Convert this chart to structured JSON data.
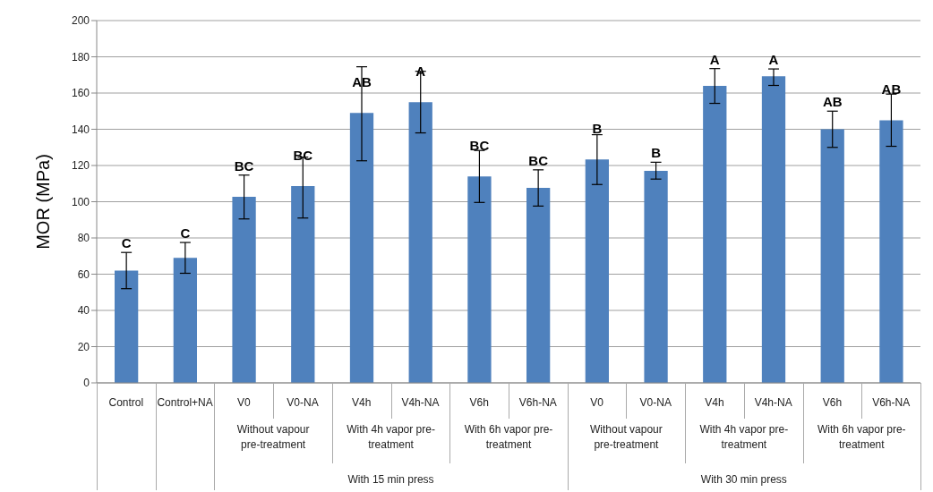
{
  "chart_data": {
    "type": "bar",
    "ylabel": "MOR (MPa)",
    "categories": [
      "Control",
      "Control+NA",
      "V0",
      "V0-NA",
      "V4h",
      "V4h-NA",
      "V6h",
      "V6h-NA",
      "V0",
      "V0-NA",
      "V4h",
      "V4h-NA",
      "V6h",
      "V6h-NA"
    ],
    "values": [
      62,
      69,
      102.7,
      108.7,
      149,
      154.9,
      114,
      107.7,
      123.3,
      117,
      163.9,
      169.2,
      140,
      145
    ],
    "errors": [
      [
        52,
        72
      ],
      [
        60.5,
        77.5
      ],
      [
        90.5,
        114.7
      ],
      [
        91,
        124.6
      ],
      [
        122.6,
        174.5
      ],
      [
        138,
        172
      ],
      [
        99.6,
        128.3
      ],
      [
        97.6,
        117.6
      ],
      [
        109.5,
        137
      ],
      [
        112.5,
        121.8
      ],
      [
        154.3,
        173.5
      ],
      [
        164.2,
        173.3
      ],
      [
        130,
        150
      ],
      [
        130.6,
        159.4
      ]
    ],
    "value_labels": [
      "C",
      "C",
      "BC",
      "BC",
      "AB",
      "A",
      "BC",
      "BC",
      "B",
      "B",
      "A",
      "A",
      "AB",
      "AB"
    ],
    "color": "#4f81bd",
    "ylim": [
      0,
      200
    ],
    "yticks": [
      0,
      20,
      40,
      60,
      80,
      100,
      120,
      140,
      160,
      180,
      200
    ],
    "grid": "y",
    "annotations": [
      "Without vapour pre-treatment",
      "With 4h vapor pre-treatment",
      "With 6h vapor pre-treatment",
      "Without vapour pre-treatment",
      "With 4h vapor pre-treatment",
      "With 6h vapor pre-treatment",
      "With 15 min press",
      "With 30 min press"
    ]
  }
}
